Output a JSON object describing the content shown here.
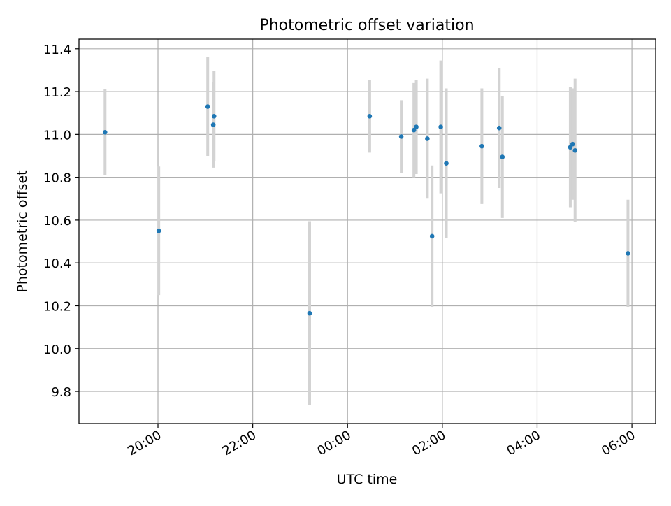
{
  "chart_data": {
    "type": "scatter",
    "title": "Photometric offset variation",
    "xlabel": "UTC time",
    "ylabel": "Photometric offset",
    "x_is_time": true,
    "xlim": [
      "18:20",
      "06:30"
    ],
    "ylim": [
      9.65,
      11.445
    ],
    "xticks": [
      "20:00",
      "22:00",
      "00:00",
      "02:00",
      "04:00",
      "06:00"
    ],
    "yticks": [
      9.8,
      10.0,
      10.2,
      10.4,
      10.6,
      10.8,
      11.0,
      11.2,
      11.4
    ],
    "grid": true,
    "legend": "none",
    "colors": {
      "points": "#1f77b4",
      "errorbars": "#d3d3d3",
      "grid": "#b0b0b0"
    },
    "points": [
      {
        "x": "18:53",
        "y": 11.01,
        "err": 0.2
      },
      {
        "x": "20:01",
        "y": 10.55,
        "err": 0.3
      },
      {
        "x": "21:03",
        "y": 11.13,
        "err": 0.23
      },
      {
        "x": "21:10",
        "y": 11.045,
        "err": 0.2
      },
      {
        "x": "21:11",
        "y": 11.085,
        "err": 0.21
      },
      {
        "x": "23:12",
        "y": 10.165,
        "err": 0.43
      },
      {
        "x": "00:28",
        "y": 11.085,
        "err": 0.17
      },
      {
        "x": "01:08",
        "y": 10.99,
        "err": 0.17
      },
      {
        "x": "01:24",
        "y": 11.02,
        "err": 0.22
      },
      {
        "x": "01:27",
        "y": 11.035,
        "err": 0.22
      },
      {
        "x": "01:41",
        "y": 10.98,
        "err": 0.28
      },
      {
        "x": "01:47",
        "y": 10.525,
        "err": 0.33
      },
      {
        "x": "01:58",
        "y": 11.035,
        "err": 0.31
      },
      {
        "x": "02:05",
        "y": 10.865,
        "err": 0.35
      },
      {
        "x": "02:50",
        "y": 10.945,
        "err": 0.27
      },
      {
        "x": "03:12",
        "y": 11.03,
        "err": 0.28
      },
      {
        "x": "03:16",
        "y": 10.895,
        "err": 0.285
      },
      {
        "x": "04:42",
        "y": 10.94,
        "err": 0.28
      },
      {
        "x": "04:45",
        "y": 10.955,
        "err": 0.26
      },
      {
        "x": "04:48",
        "y": 10.925,
        "err": 0.335
      },
      {
        "x": "05:55",
        "y": 10.445,
        "err": 0.25
      }
    ]
  }
}
